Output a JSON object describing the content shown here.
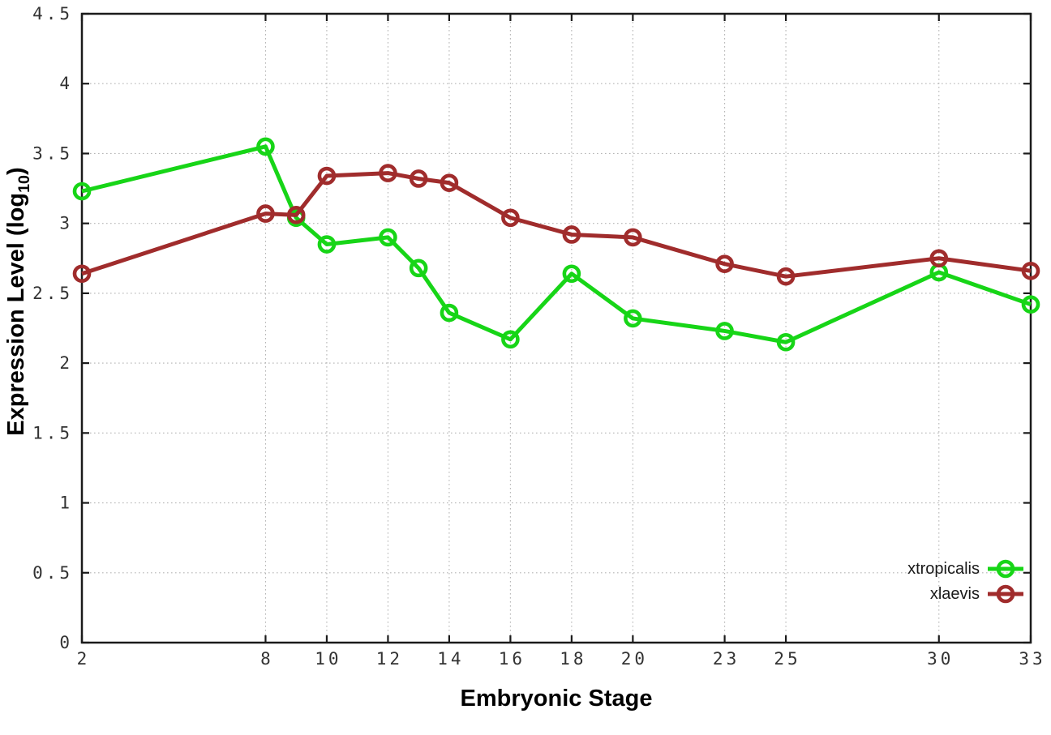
{
  "chart_data": {
    "type": "line",
    "xlabel": "Embryonic Stage",
    "ylabel": "Expression Level (log10)",
    "ylabel_parts": {
      "pre": "Expression Level (log",
      "sub": "10",
      "post": ")"
    },
    "x": [
      2,
      8,
      9,
      10,
      12,
      13,
      14,
      16,
      18,
      20,
      23,
      25,
      30,
      33
    ],
    "xticks": [
      2,
      8,
      10,
      12,
      14,
      16,
      18,
      20,
      23,
      25,
      30,
      33
    ],
    "yticks": [
      0,
      0.5,
      1,
      1.5,
      2,
      2.5,
      3,
      3.5,
      4,
      4.5
    ],
    "xlim": [
      2,
      33
    ],
    "ylim": [
      0,
      4.5
    ],
    "grid": true,
    "legend_position": "inside-bottom-right",
    "marker": "open-circle",
    "series": [
      {
        "name": "xtropicalis",
        "color": "#17d517",
        "values": [
          3.23,
          3.55,
          3.04,
          2.85,
          2.9,
          2.68,
          2.36,
          2.17,
          2.64,
          2.32,
          2.23,
          2.15,
          2.65,
          2.42
        ]
      },
      {
        "name": "xlaevis",
        "color": "#a02c2c",
        "values": [
          2.64,
          3.07,
          3.06,
          3.34,
          3.36,
          3.32,
          3.29,
          3.04,
          2.92,
          2.9,
          2.71,
          2.62,
          2.75,
          2.66
        ]
      }
    ],
    "colors": {
      "axis": "#1b1b1b",
      "grid": "#b5b5b5",
      "tick_label": "#333333",
      "background": "#ffffff"
    }
  }
}
